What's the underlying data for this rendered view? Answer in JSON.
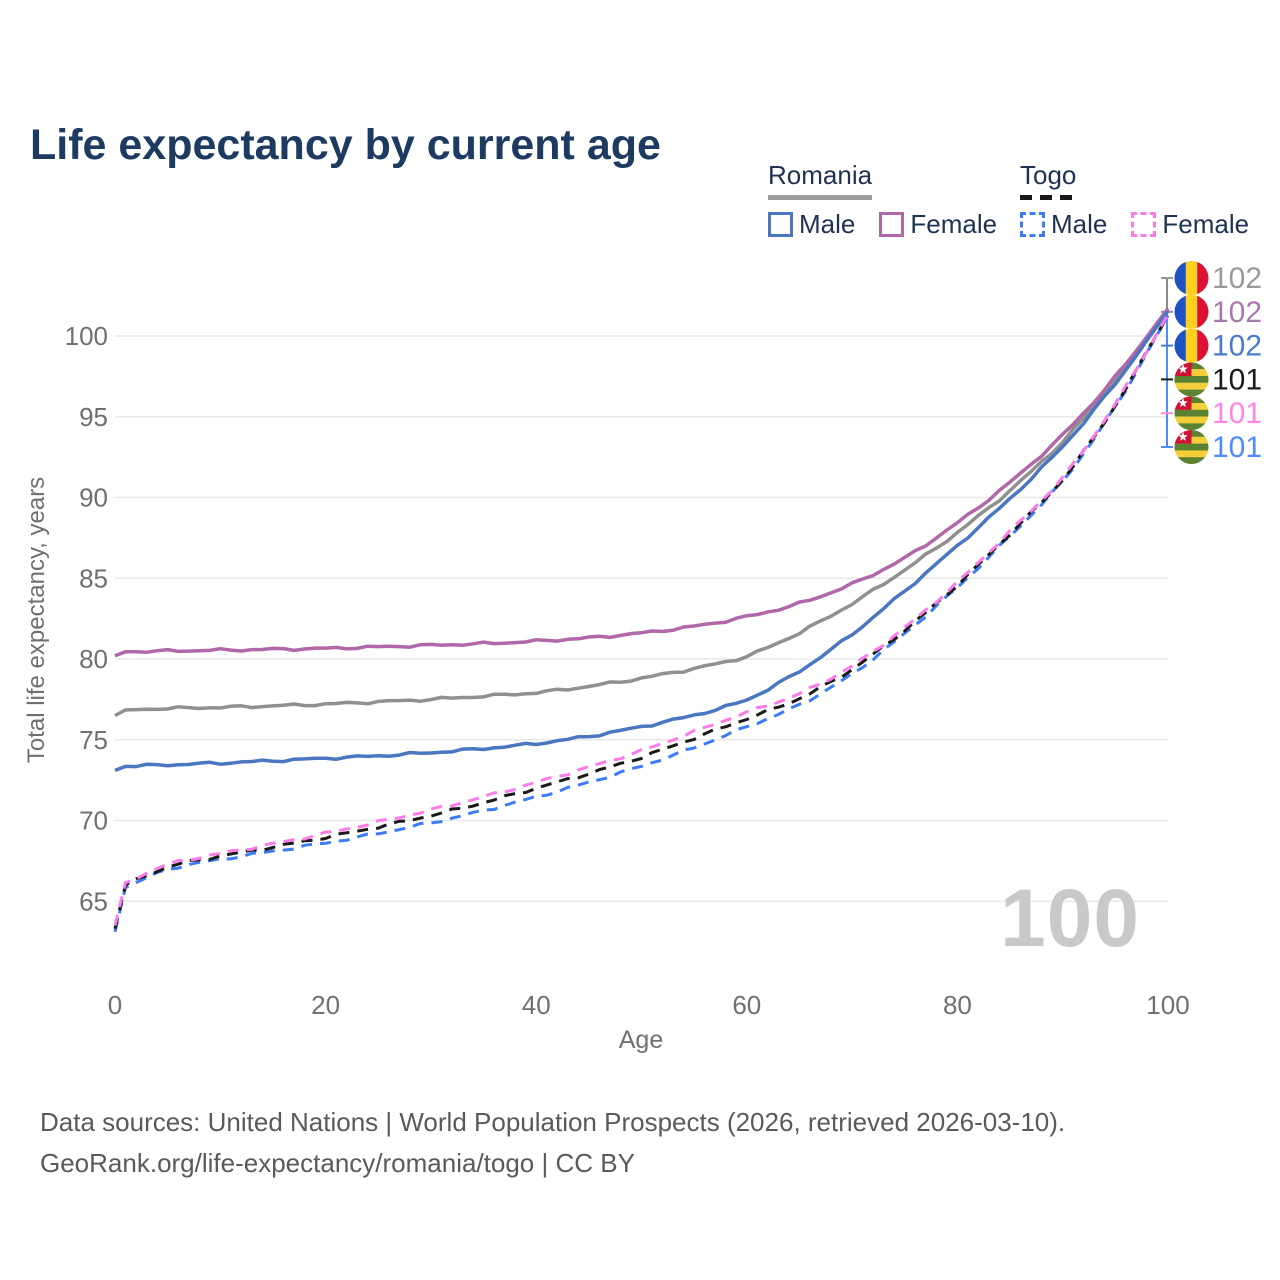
{
  "title": "Life expectancy by current age",
  "watermark": "100",
  "legend": {
    "groups": [
      {
        "label": "Romania",
        "line_style": "solid",
        "underline_color": "#9e9e9e",
        "items": [
          {
            "label": "Male",
            "color": "#4a77c0"
          },
          {
            "label": "Female",
            "color": "#b068a9"
          }
        ]
      },
      {
        "label": "Togo",
        "line_style": "dashed",
        "underline_color": "#1a1a1a",
        "items": [
          {
            "label": "Male",
            "color": "#3d7cf5"
          },
          {
            "label": "Female",
            "color": "#fb7ce8"
          }
        ]
      }
    ]
  },
  "footer": {
    "line1": "Data sources: United Nations | World Population Prospects (2026, retrieved 2026-03-10).",
    "line2": "GeoRank.org/life-expectancy/romania/togo | CC BY"
  },
  "chart_data": {
    "type": "line",
    "title": "Life expectancy by current age",
    "xlabel": "Age",
    "ylabel": "Total life expectancy, years",
    "xlim": [
      0,
      100
    ],
    "ylim": [
      62,
      103
    ],
    "xticks": [
      0,
      20,
      40,
      60,
      80,
      100
    ],
    "yticks": [
      65,
      70,
      75,
      80,
      85,
      90,
      95,
      100
    ],
    "grid": "horizontal-only",
    "legend_position": "top-right",
    "ages": [
      0,
      1,
      5,
      10,
      15,
      20,
      25,
      30,
      35,
      40,
      45,
      50,
      55,
      60,
      65,
      70,
      75,
      80,
      85,
      90,
      95,
      100
    ],
    "series": [
      {
        "name": "Romania Both sexes",
        "country": "Romania",
        "sex": "Both",
        "style": "solid",
        "color": "#909090",
        "end_label": "102",
        "end_label_color": "#999999",
        "flag": "romania",
        "values": [
          76.5,
          76.85,
          76.95,
          77.0,
          77.1,
          77.2,
          77.35,
          77.5,
          77.7,
          77.9,
          78.3,
          78.8,
          79.4,
          80.1,
          81.6,
          83.4,
          85.5,
          87.8,
          90.4,
          93.4,
          97.2,
          101.65
        ]
      },
      {
        "name": "Romania Female",
        "country": "Romania",
        "sex": "Female",
        "style": "solid",
        "color": "#b068a9",
        "end_label": "102",
        "end_label_color": "#a979ad",
        "flag": "romania",
        "values": [
          80.2,
          80.45,
          80.5,
          80.55,
          80.6,
          80.65,
          80.75,
          80.85,
          80.95,
          81.1,
          81.3,
          81.6,
          82.0,
          82.6,
          83.4,
          84.6,
          86.2,
          88.4,
          90.9,
          93.8,
          97.4,
          101.7
        ]
      },
      {
        "name": "Romania Male",
        "country": "Romania",
        "sex": "Male",
        "style": "solid",
        "color": "#4a77c0",
        "end_label": "102",
        "end_label_color": "#4a7bd0",
        "flag": "romania",
        "values": [
          73.1,
          73.35,
          73.45,
          73.55,
          73.7,
          73.85,
          74.0,
          74.2,
          74.45,
          74.75,
          75.2,
          75.8,
          76.5,
          77.4,
          79.2,
          81.5,
          84.2,
          87.0,
          89.9,
          93.1,
          97.0,
          101.55
        ]
      },
      {
        "name": "Togo Both sexes",
        "country": "Togo",
        "sex": "Both",
        "style": "dashed",
        "color": "#1a1a1a",
        "end_label": "101",
        "end_label_color": "#1a1a1a",
        "flag": "togo",
        "values": [
          63.3,
          66.0,
          67.2,
          67.8,
          68.35,
          68.95,
          69.6,
          70.3,
          71.1,
          72.0,
          72.9,
          73.9,
          75.1,
          76.3,
          77.5,
          79.3,
          81.75,
          84.55,
          87.75,
          91.0,
          95.6,
          101.3
        ]
      },
      {
        "name": "Togo Female",
        "country": "Togo",
        "sex": "Female",
        "style": "dashed",
        "color": "#fb7ce8",
        "end_label": "101",
        "end_label_color": "#ff85e6",
        "flag": "togo",
        "values": [
          63.5,
          66.15,
          67.35,
          67.95,
          68.55,
          69.2,
          69.9,
          70.65,
          71.45,
          72.35,
          73.3,
          74.3,
          75.5,
          76.7,
          77.8,
          79.5,
          81.9,
          84.7,
          87.9,
          91.1,
          95.7,
          101.35
        ]
      },
      {
        "name": "Togo Male",
        "country": "Togo",
        "sex": "Male",
        "style": "dashed",
        "color": "#3d7cf5",
        "end_label": "101",
        "end_label_color": "#4d8bff",
        "flag": "togo",
        "values": [
          63.1,
          65.85,
          67.05,
          67.6,
          68.1,
          68.6,
          69.2,
          69.85,
          70.6,
          71.45,
          72.35,
          73.35,
          74.5,
          75.8,
          77.1,
          79.0,
          81.55,
          84.4,
          87.6,
          90.9,
          95.5,
          101.25
        ]
      }
    ]
  }
}
